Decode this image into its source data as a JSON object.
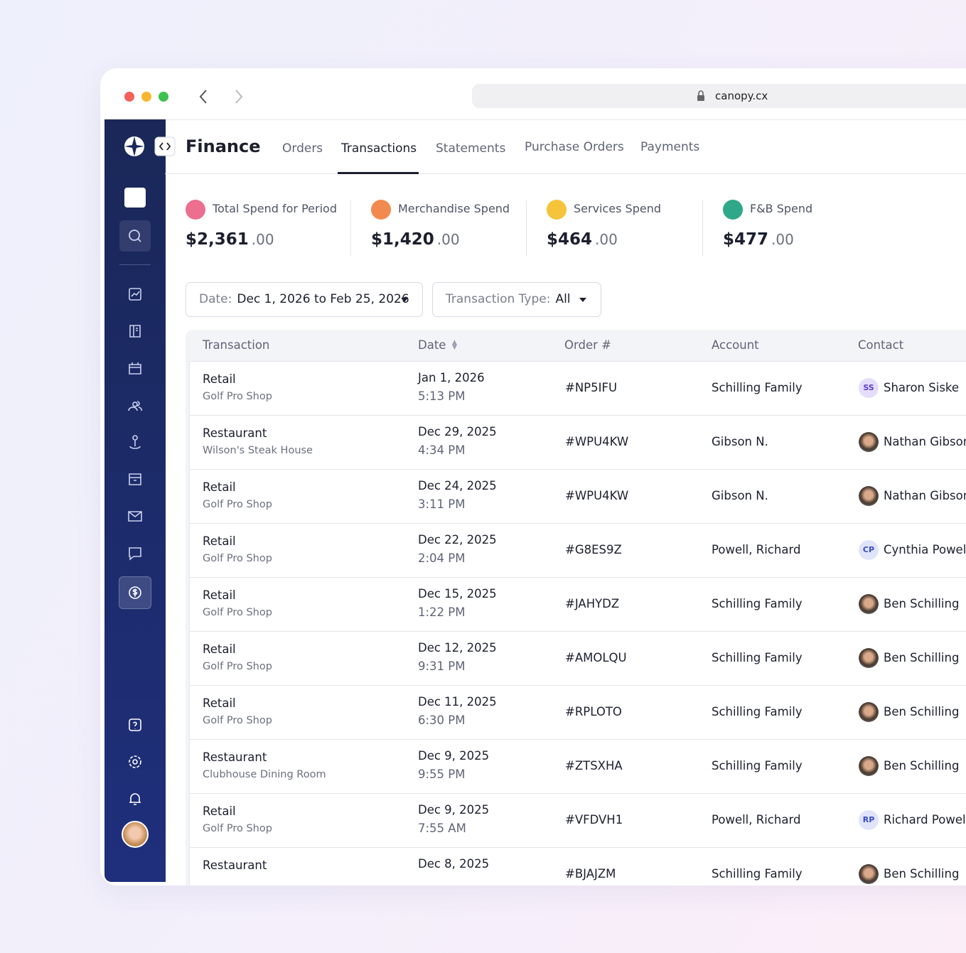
{
  "browser": {
    "url": "canopy.cx"
  },
  "header": {
    "title": "Finance",
    "tabs": [
      "Orders",
      "Transactions",
      "Statements",
      "Purchase Orders",
      "Payments"
    ]
  },
  "stats": [
    {
      "label": "Total Spend for Period",
      "amount": "$2,361",
      "cents": ".00"
    },
    {
      "label": "Merchandise Spend",
      "amount": "$1,420",
      "cents": ".00"
    },
    {
      "label": "Services Spend",
      "amount": "$464",
      "cents": ".00"
    },
    {
      "label": "F&B Spend",
      "amount": "$477",
      "cents": ".00"
    }
  ],
  "filters": [
    {
      "label": "Date:",
      "value": "Dec 1, 2026 to Feb 25, 2026"
    },
    {
      "label": "Transaction Type:",
      "value": "All"
    }
  ],
  "table": {
    "columns": [
      "Transaction",
      "Date",
      "Order #",
      "Account",
      "Contact"
    ],
    "rows": [
      {
        "type": "Retail",
        "location": "Golf Pro Shop",
        "date": "Jan 1, 2026",
        "time": "5:13 PM",
        "order": "#NP5IFU",
        "account": "Schilling Family",
        "contact": "Sharon Siske",
        "initials": "SS"
      },
      {
        "type": "Restaurant",
        "location": "Wilson's Steak House",
        "date": "Dec 29, 2025",
        "time": "4:34 PM",
        "order": "#WPU4KW",
        "account": "Gibson N.",
        "contact": "Nathan Gibson"
      },
      {
        "type": "Retail",
        "location": "Golf Pro Shop",
        "date": "Dec 24, 2025",
        "time": "3:11 PM",
        "order": "#WPU4KW",
        "account": "Gibson N.",
        "contact": "Nathan Gibson"
      },
      {
        "type": "Retail",
        "location": "Golf Pro Shop",
        "date": "Dec 22, 2025",
        "time": "2:04 PM",
        "order": "#G8ES9Z",
        "account": "Powell, Richard",
        "contact": "Cynthia Powell",
        "initials": "CP"
      },
      {
        "type": "Retail",
        "location": "Golf Pro Shop",
        "date": "Dec 15, 2025",
        "time": "1:22 PM",
        "order": "#JAHYDZ",
        "account": "Schilling Family",
        "contact": "Ben Schilling"
      },
      {
        "type": "Retail",
        "location": "Golf Pro Shop",
        "date": "Dec 12, 2025",
        "time": "9:31 PM",
        "order": "#AMOLQU",
        "account": "Schilling Family",
        "contact": "Ben Schilling"
      },
      {
        "type": "Retail",
        "location": "Golf Pro Shop",
        "date": "Dec 11, 2025",
        "time": "6:30 PM",
        "order": "#RPLOTO",
        "account": "Schilling Family",
        "contact": "Ben Schilling"
      },
      {
        "type": "Restaurant",
        "location": "Clubhouse Dining Room",
        "date": "Dec 9, 2025",
        "time": "9:55 PM",
        "order": "#ZTSXHA",
        "account": "Schilling Family",
        "contact": "Ben Schilling"
      },
      {
        "type": "Retail",
        "location": "Golf Pro Shop",
        "date": "Dec 9, 2025",
        "time": "7:55 AM",
        "order": "#VFDVH1",
        "account": "Powell, Richard",
        "contact": "Richard Powell",
        "initials": "RP"
      },
      {
        "type": "Restaurant",
        "date": "Dec 8, 2025",
        "order": "#BJAJZM",
        "account": "Schilling Family",
        "contact": "Ben Schilling"
      }
    ]
  }
}
